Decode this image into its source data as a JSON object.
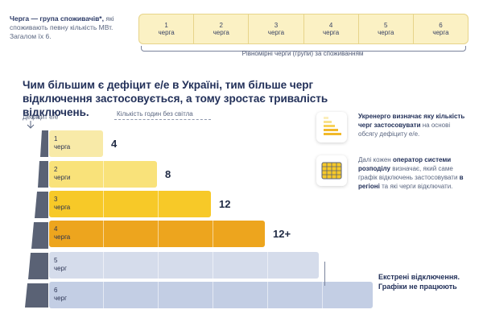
{
  "definition": {
    "term": "Черга — група споживачів*,",
    "text": "які споживають певну кількість МВт. Загалом їх 6."
  },
  "queues": [
    {
      "number": "1",
      "label": "черга"
    },
    {
      "number": "2",
      "label": "черга"
    },
    {
      "number": "3",
      "label": "черга"
    },
    {
      "number": "4",
      "label": "черга"
    },
    {
      "number": "5",
      "label": "черга"
    },
    {
      "number": "6",
      "label": "черга"
    }
  ],
  "queues_caption": "Рівномірні черги (групи) за споживанням",
  "headline": "Чим більшим є дефіцит е/е в Україні, тим більше черг відключення застосовується, а тому зростає тривалість відключень.",
  "axis": {
    "deficit_label": "Дефіцит е/е",
    "hours_label": "Кількість годин без світла"
  },
  "bars": [
    {
      "number": "1",
      "label": "черга",
      "hours": "4",
      "segments": 1,
      "color": "#f8eaa8"
    },
    {
      "number": "2",
      "label": "черги",
      "hours": "8",
      "segments": 2,
      "color": "#f9e27a"
    },
    {
      "number": "3",
      "label": "черга",
      "hours": "12",
      "segments": 3,
      "color": "#f7c928"
    },
    {
      "number": "4",
      "label": "черга",
      "hours": "12+",
      "segments": 4,
      "color": "#eda51e"
    },
    {
      "number": "5",
      "label": "черг",
      "hours": "",
      "segments": 5,
      "color": "#d5dceb"
    },
    {
      "number": "6",
      "label": "черг",
      "hours": "",
      "segments": 6,
      "color": "#c3cee4"
    }
  ],
  "panel1": {
    "p1": "Укренерго",
    "p2": " визначає яку кількість черг",
    "p3": " застосовувати",
    "p4": " на основі обсягу дефіциту е/е."
  },
  "panel2": {
    "p1": "Далі кожен ",
    "p2": "оператор системи розподілу",
    "p3": " визначає, який саме графік відключень застосовувати ",
    "p4": "в регіоні",
    "p5": " та які черги відключати."
  },
  "emergency": {
    "line1": "Екстрені відключення.",
    "line2": "Графіки не працюють"
  },
  "colors": {
    "navy": "#223059",
    "queue_fill": "#fbf1c4",
    "step": "#5a6275"
  },
  "icons": [
    "bar-chart-icon",
    "schedule-grid-icon"
  ]
}
